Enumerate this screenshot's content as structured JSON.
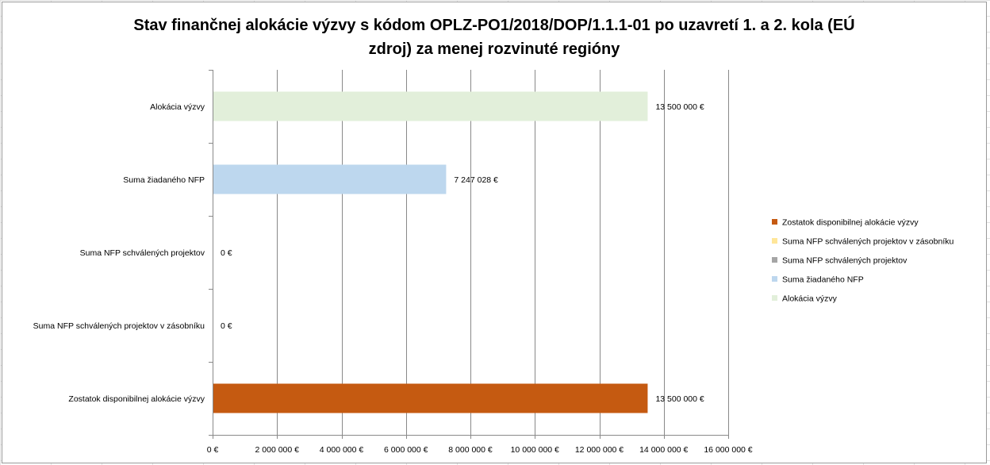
{
  "chart_data": {
    "type": "bar",
    "orientation": "horizontal",
    "title": "Stav finančnej alokácie výzvy s kódom OPLZ-PO1/2018/DOP/1.1.1-01 po uzavretí 1. a 2. kola (EÚ zdroj) za menej rozvinuté regióny",
    "title_lines": [
      "Stav finančnej alokácie výzvy s kódom OPLZ-PO1/2018/DOP/1.1.1-01 po uzavretí 1. a 2. kola (EÚ",
      "zdroj) za menej rozvinuté regióny"
    ],
    "categories": [
      "Alokácia výzvy",
      "Suma žiadaného NFP",
      "Suma NFP schválených projektov",
      "Suma NFP schválených projektov v zásobníku",
      "Zostatok disponibilnej alokácie výzvy"
    ],
    "values": [
      13500000,
      7247028,
      0,
      0,
      13500000
    ],
    "colors": [
      "#e2efda",
      "#bdd7ee",
      "#a5a5a5",
      "#ffe699",
      "#c55a11"
    ],
    "data_labels": [
      "13 500 000 €",
      "7 247 028 €",
      "0 €",
      "0 €",
      "13 500 000 €"
    ],
    "xlim": [
      0,
      16000000
    ],
    "x_ticks": [
      0,
      2000000,
      4000000,
      6000000,
      8000000,
      10000000,
      12000000,
      14000000,
      16000000
    ],
    "x_tick_labels": [
      "0 €",
      "2 000 000 €",
      "4 000 000 €",
      "6 000 000 €",
      "8 000 000 €",
      "10 000 000 €",
      "12 000 000 €",
      "14 000 000 €",
      "16 000 000 €"
    ],
    "xlabel": "",
    "ylabel": "",
    "grid": "vertical",
    "legend_position": "right",
    "legend": [
      {
        "name": "Zostatok disponibilnej alokácie výzvy",
        "color": "#c55a11"
      },
      {
        "name": "Suma NFP schválených projektov v zásobníku",
        "color": "#ffe699"
      },
      {
        "name": "Suma NFP schválených projektov",
        "color": "#a5a5a5"
      },
      {
        "name": "Suma žiadaného NFP",
        "color": "#bdd7ee"
      },
      {
        "name": "Alokácia výzvy",
        "color": "#e2efda"
      }
    ]
  }
}
